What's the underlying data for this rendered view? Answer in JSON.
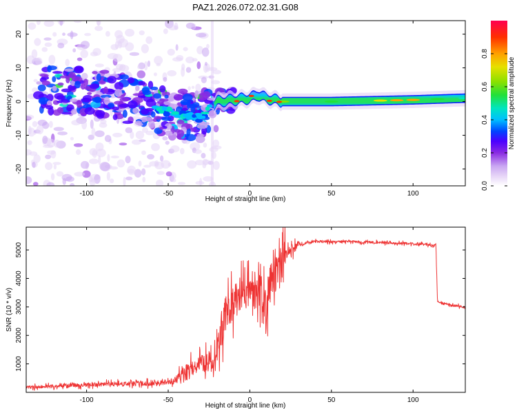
{
  "title": "PAZ1.2026.072.02.31.G08",
  "chart_data": [
    {
      "type": "heatmap",
      "name": "spectrogram",
      "xlabel": "Height of straight line (km)",
      "ylabel": "Frequency (Hz)",
      "xlim": [
        -137,
        132
      ],
      "ylim": [
        -25,
        24
      ],
      "xticks": [
        -100,
        -50,
        0,
        50,
        100
      ],
      "yticks": [
        -20,
        -10,
        0,
        10,
        20
      ],
      "colorbar": {
        "label": "Normalized spectral amplitude",
        "range": [
          0,
          1
        ],
        "ticks": [
          0.0,
          0.2,
          0.4,
          0.6,
          0.8
        ],
        "tick_labels": [
          "0.0",
          "0.2",
          "0.4",
          "0.6",
          "0.8"
        ],
        "colormap": [
          "#ffffff",
          "#e6d5f7",
          "#c9a6f2",
          "#8a2be2",
          "#4b00ff",
          "#0044ff",
          "#00bfff",
          "#00e5c0",
          "#22e03a",
          "#8be000",
          "#e6e000",
          "#ffa000",
          "#ff3000",
          "#ff0050"
        ]
      },
      "ridge": [
        {
          "x": -120,
          "f": 3
        },
        {
          "x": -100,
          "f": 3
        },
        {
          "x": -85,
          "f": 2
        },
        {
          "x": -70,
          "f": 0
        },
        {
          "x": -60,
          "f": -2
        },
        {
          "x": -50,
          "f": -3
        },
        {
          "x": -40,
          "f": -4
        },
        {
          "x": -30,
          "f": -5
        },
        {
          "x": -24,
          "f": -2
        },
        {
          "x": -20,
          "f": 0
        },
        {
          "x": -10,
          "f": 0.5
        },
        {
          "x": 0,
          "f": 1
        },
        {
          "x": 5,
          "f": 2
        },
        {
          "x": 10,
          "f": 1
        },
        {
          "x": 20,
          "f": 0
        },
        {
          "x": 50,
          "f": 0
        },
        {
          "x": 100,
          "f": 0.5
        },
        {
          "x": 132,
          "f": 1
        }
      ],
      "tone_amplitude": [
        {
          "x": 20,
          "a": 0.7
        },
        {
          "x": 50,
          "a": 0.6
        },
        {
          "x": 80,
          "a": 0.75
        },
        {
          "x": 90,
          "a": 0.88
        },
        {
          "x": 100,
          "a": 0.85
        },
        {
          "x": 115,
          "a": 0.65
        },
        {
          "x": 132,
          "a": 0.55
        }
      ]
    },
    {
      "type": "line",
      "name": "snr",
      "xlabel": "Height of straight line (km)",
      "ylabel": "SNR (10 * v/v)",
      "xlim": [
        -137,
        132
      ],
      "ylim": [
        0,
        5800
      ],
      "xticks": [
        -100,
        -50,
        0,
        50,
        100
      ],
      "yticks": [
        1000,
        2000,
        3000,
        4000,
        5000
      ],
      "color": "#ee3333",
      "series": [
        {
          "name": "SNR",
          "x": [
            -137,
            -130,
            -120,
            -110,
            -100,
            -90,
            -80,
            -70,
            -60,
            -50,
            -45,
            -40,
            -35,
            -30,
            -25,
            -22,
            -20,
            -18,
            -15,
            -12,
            -10,
            -8,
            -5,
            -3,
            0,
            2,
            5,
            8,
            10,
            12,
            15,
            18,
            20,
            22,
            25,
            28,
            30,
            35,
            40,
            50,
            60,
            70,
            80,
            90,
            100,
            110,
            114,
            115,
            116,
            120,
            125,
            132
          ],
          "y": [
            180,
            190,
            210,
            230,
            260,
            280,
            290,
            300,
            320,
            360,
            450,
            700,
            900,
            1000,
            1100,
            1000,
            1400,
            2000,
            2600,
            2900,
            3100,
            3300,
            3500,
            3400,
            3600,
            3300,
            3700,
            3400,
            2800,
            3800,
            4200,
            4100,
            4600,
            4800,
            5000,
            5100,
            5200,
            5250,
            5300,
            5280,
            5300,
            5270,
            5260,
            5240,
            5220,
            5180,
            5150,
            3200,
            3150,
            3100,
            3050,
            3000
          ]
        }
      ]
    }
  ]
}
